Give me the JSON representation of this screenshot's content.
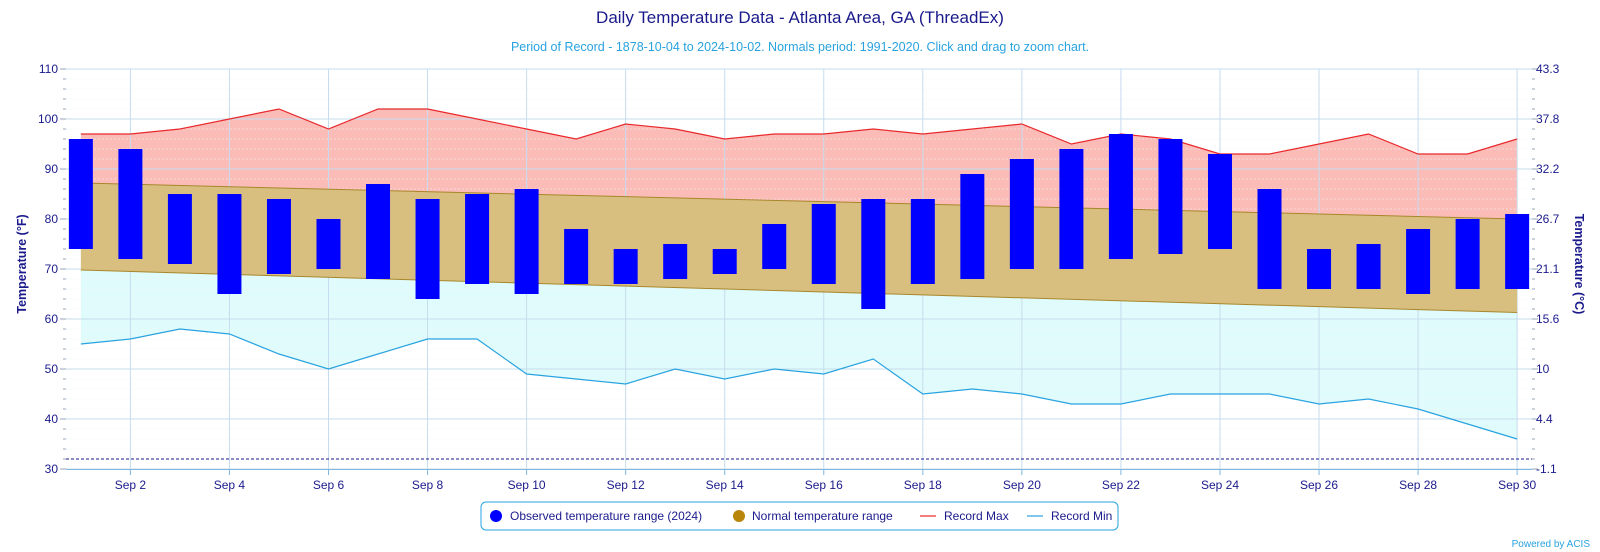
{
  "chart_data": {
    "type": "bar",
    "title": "Daily Temperature Data - Atlanta Area, GA (ThreadEx)",
    "subtitle": "Period of Record - 1878-10-04 to 2024-10-02. Normals period: 1991-2020. Click and drag to zoom chart.",
    "ylabel": "Temperature (°F)",
    "ylabel_right": "Temperature (°C)",
    "ylim": [
      30,
      110
    ],
    "yticks": [
      "30",
      "40",
      "50",
      "60",
      "70",
      "80",
      "90",
      "100",
      "110"
    ],
    "yticks_right": [
      "-1.1",
      "4.4",
      "10",
      "15.6",
      "21.1",
      "26.7",
      "32.2",
      "37.8",
      "43.3"
    ],
    "x": [
      1,
      2,
      3,
      4,
      5,
      6,
      7,
      8,
      9,
      10,
      11,
      12,
      13,
      14,
      15,
      16,
      17,
      18,
      19,
      20,
      21,
      22,
      23,
      24,
      25,
      26,
      27,
      28,
      29,
      30
    ],
    "xtick_labels": [
      "Sep 2",
      "Sep 4",
      "Sep 6",
      "Sep 8",
      "Sep 10",
      "Sep 12",
      "Sep 14",
      "Sep 16",
      "Sep 18",
      "Sep 20",
      "Sep 22",
      "Sep 24",
      "Sep 26",
      "Sep 28",
      "Sep 30"
    ],
    "xtick_days": [
      2,
      4,
      6,
      8,
      10,
      12,
      14,
      16,
      18,
      20,
      22,
      24,
      26,
      28,
      30
    ],
    "observed_high": [
      96,
      94,
      85,
      85,
      84,
      80,
      87,
      84,
      85,
      86,
      78,
      74,
      75,
      74,
      79,
      83,
      84,
      84,
      89,
      92,
      94,
      97,
      96,
      93,
      86,
      74,
      75,
      78,
      80,
      81
    ],
    "observed_low": [
      74,
      72,
      71,
      65,
      69,
      70,
      68,
      64,
      67,
      65,
      67,
      67,
      68,
      69,
      70,
      67,
      62,
      67,
      68,
      70,
      70,
      72,
      73,
      74,
      66,
      66,
      66,
      65,
      66,
      66
    ],
    "normal_high_start": 87.2,
    "normal_high_end": 80.0,
    "normal_low_start": 69.8,
    "normal_low_end": 61.3,
    "record_max": [
      97,
      97,
      98,
      100,
      102,
      98,
      102,
      102,
      100,
      98,
      96,
      99,
      98,
      96,
      97,
      97,
      98,
      97,
      98,
      99,
      95,
      97,
      96,
      93,
      93,
      95,
      97,
      93,
      93,
      96
    ],
    "record_min": [
      55,
      56,
      58,
      57,
      53,
      50,
      53,
      56,
      56,
      49,
      48,
      47,
      50,
      48,
      50,
      49,
      52,
      45,
      46,
      45,
      43,
      43,
      45,
      45,
      45,
      43,
      44,
      42,
      39,
      36
    ],
    "reference_line": 32,
    "grid": true,
    "legend": {
      "placement": "bottom-center",
      "items": [
        {
          "label": "Observed temperature range (2024)",
          "color": "#0000ff",
          "marker": "circle"
        },
        {
          "label": "Normal temperature range",
          "color": "#b8860b",
          "marker": "circle"
        },
        {
          "label": "Record Max",
          "color": "#e8292c",
          "marker": "line"
        },
        {
          "label": "Record Min",
          "color": "#29a3e0",
          "marker": "line"
        }
      ]
    },
    "credits": "Powered by ACIS"
  },
  "colors": {
    "observed": "#0000ff",
    "normal_fill": "#d8bf80",
    "normal_edge": "#a8872a",
    "record_max_line": "#e8292c",
    "record_max_fill": "#fbbcb8",
    "record_min_line": "#29a3e0",
    "record_min_fill": "#e0fbfb",
    "text": "#1a1a8c"
  }
}
